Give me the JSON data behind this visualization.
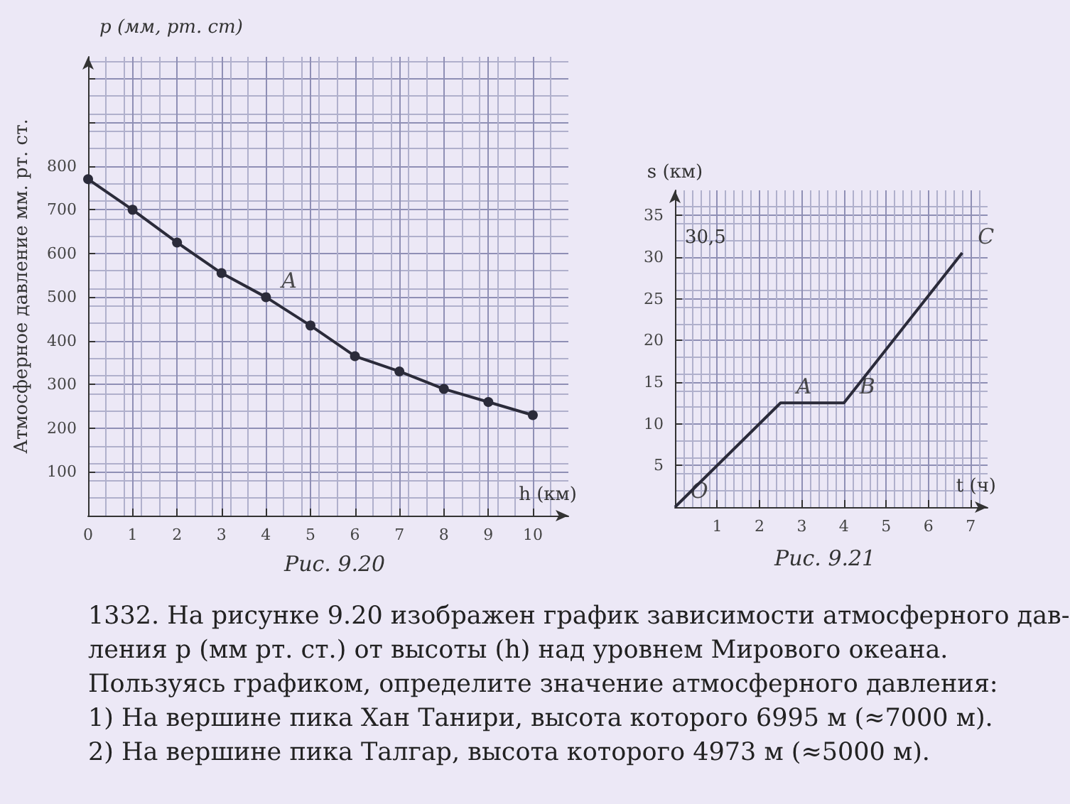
{
  "chart_data": [
    {
      "type": "line",
      "xlabel": "h (км)",
      "ylabel": "Атмосферное давление мм. рт. ст.",
      "x": [
        0,
        1,
        2,
        3,
        4,
        5,
        6,
        7,
        8,
        9,
        10
      ],
      "series": [
        {
          "color": "#2b2b3a",
          "values": [
            770,
            700,
            625,
            555,
            500,
            435,
            365,
            330,
            290,
            260,
            230
          ]
        }
      ],
      "xlim": [
        0,
        10.8
      ],
      "xticks": [
        0,
        1,
        2,
        3,
        4,
        5,
        6,
        7,
        8,
        9,
        10
      ],
      "ylim": [
        0,
        1050
      ],
      "yticks": [
        100,
        200,
        300,
        400,
        500,
        600,
        700,
        800,
        {
          "value": 900,
          "label": null
        },
        {
          "value": 1000,
          "label": null
        }
      ],
      "grid": true,
      "marker": "circle",
      "line_style": "solid",
      "annotations": [
        "Рис. 9.20",
        "1332. На рисунке 9.20 изображен график зависимости атмосферного дав-",
        "ления p (мм рт. ст.) от высоты (h) над уровнем Мирового океана.",
        "Пользуясь графиком, определите значение атмосферного давления:",
        "1) На вершине пика Хан Танири, высота которого 6995 м (≈7000 м).",
        "2) На вершине пика Талгар, высота которого 4973 м (≈5000 м).",
        "p (мм, рт. ст)",
        {
          "text": "A",
          "x": 4,
          "y": 500
        }
      ]
    },
    {
      "type": "line",
      "xlabel": "t (ч)",
      "ylabel": "s (км)",
      "x": [
        0,
        2.5,
        4,
        6.8
      ],
      "series": [
        {
          "color": "#2b2b3a",
          "values": [
            0,
            12.5,
            12.5,
            30.5
          ]
        }
      ],
      "xlim": [
        0,
        7.4
      ],
      "xticks": [
        1,
        2,
        3,
        4,
        5,
        6,
        7
      ],
      "ylim": [
        0,
        38
      ],
      "yticks": [
        5,
        10,
        15,
        20,
        25,
        30,
        35
      ],
      "grid": true,
      "marker": "none",
      "line_style": "solid",
      "annotations": [
        "Рис. 9.21",
        "30,5",
        {
          "text": "O",
          "x": 0,
          "y": 0
        },
        {
          "text": "A",
          "x": 2.5,
          "y": 12.5
        },
        {
          "text": "B",
          "x": 4,
          "y": 12.5
        },
        {
          "text": "C",
          "x": 6.8,
          "y": 30.5
        }
      ]
    }
  ]
}
